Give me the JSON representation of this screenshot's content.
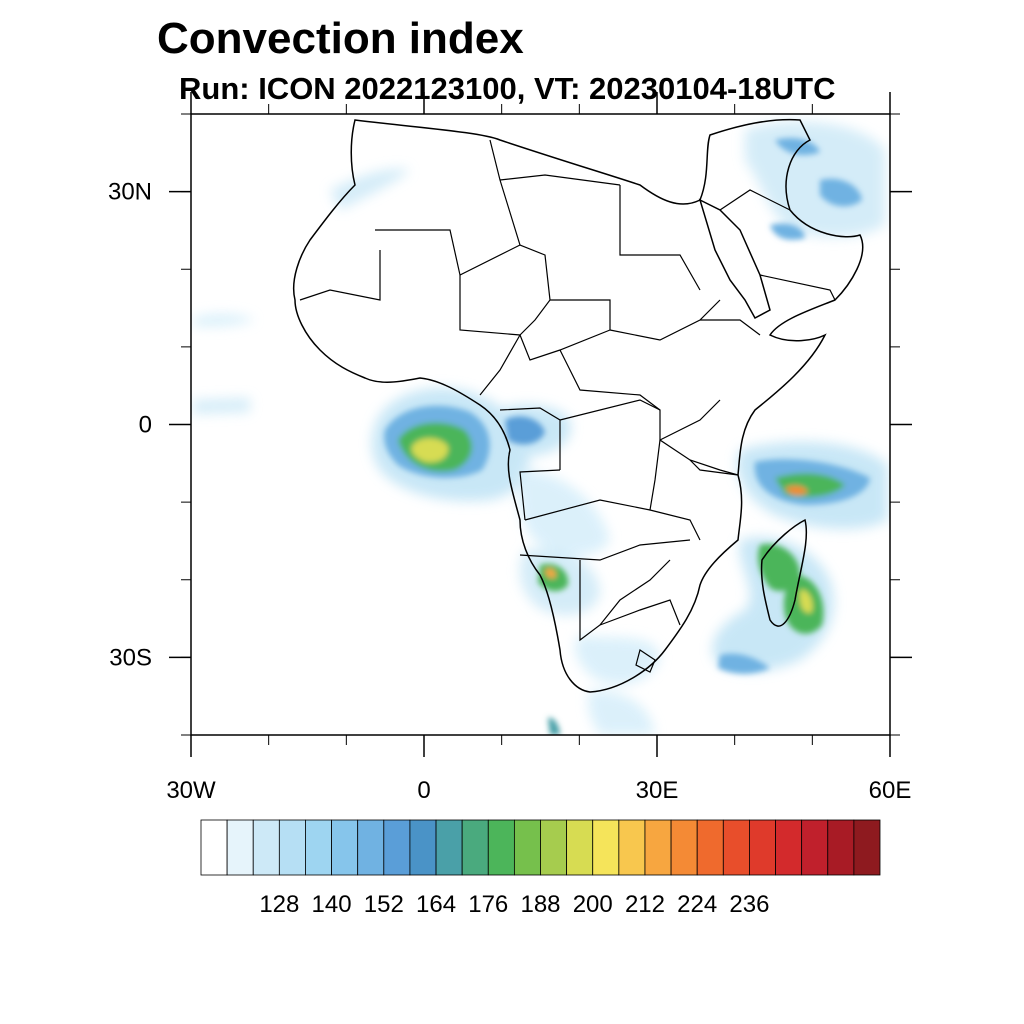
{
  "title": "Convection index",
  "subtitle": "Run: ICON 2022123100,  VT: 20230104-18UTC",
  "map": {
    "lon_range": [
      -30,
      60
    ],
    "lat_range": [
      -40,
      40
    ],
    "x_ticks": [
      {
        "lon": -30,
        "label": "30W"
      },
      {
        "lon": 0,
        "label": "0"
      },
      {
        "lon": 30,
        "label": "30E"
      },
      {
        "lon": 60,
        "label": "60E"
      }
    ],
    "y_ticks": [
      {
        "lat": 30,
        "label": "30N"
      },
      {
        "lat": 0,
        "label": "0"
      },
      {
        "lat": -30,
        "label": "30S"
      }
    ]
  },
  "colorbar": {
    "labels": [
      "128",
      "140",
      "152",
      "164",
      "176",
      "188",
      "200",
      "212",
      "224",
      "236"
    ],
    "colors": [
      "#ffffff",
      "#e6f4fb",
      "#cde9f7",
      "#b6dff4",
      "#9ed5f1",
      "#86c5eb",
      "#70b2e2",
      "#5a9ed8",
      "#4a93c7",
      "#4aa0a8",
      "#4aaa7e",
      "#4cb55a",
      "#76c04c",
      "#a6cc4e",
      "#d7dc52",
      "#f5e45a",
      "#f8c74e",
      "#f7a640",
      "#f48a35",
      "#ef6a2d",
      "#e84e2b",
      "#df3a2b",
      "#d32a2c",
      "#c0202c",
      "#a81b25",
      "#8e1a1f"
    ]
  },
  "convection_areas": [
    {
      "lon": -3,
      "lat": -2,
      "intensity": 0.55
    },
    {
      "lon": 7,
      "lat": -1,
      "intensity": 0.45
    },
    {
      "lon": 50,
      "lat": -8,
      "intensity": 0.6
    },
    {
      "lon": 47,
      "lat": -20,
      "intensity": 0.6
    },
    {
      "lon": 15,
      "lat": -20,
      "intensity": 0.4
    },
    {
      "lon": 50,
      "lat": 30,
      "intensity": 0.35
    },
    {
      "lon": 40,
      "lat": -31,
      "intensity": 0.35
    }
  ]
}
